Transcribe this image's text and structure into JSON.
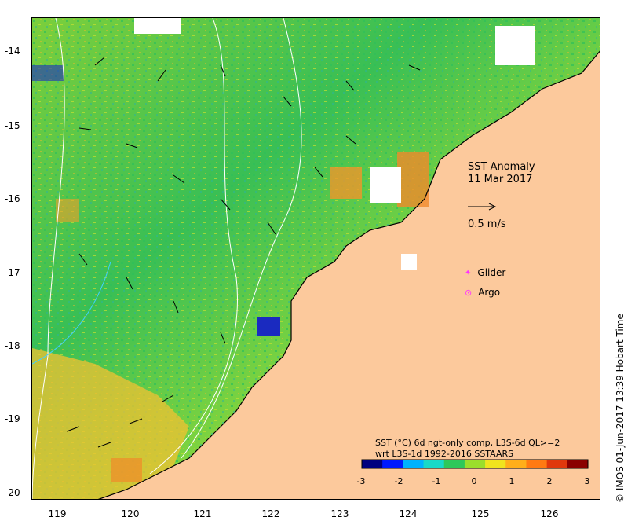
{
  "title": "SST Anomaly",
  "date": "11 Mar 2017",
  "velocity_scale_label": "0.5 m/s",
  "legend": {
    "glider": "Glider",
    "argo": "Argo",
    "glider_color": "#ff33ff",
    "argo_color": "#ff33ff"
  },
  "colorbar": {
    "line1": "SST (°C) 6d ngt-only comp, L3S-6d QL>=2",
    "line2": "wrt L3S-1d 1992-2016 SSTAARS",
    "ticks": [
      "-3",
      "-2",
      "-1",
      "0",
      "1",
      "2",
      "3"
    ],
    "colors": [
      "#00007f",
      "#0019ff",
      "#00b2ff",
      "#19d9c8",
      "#2ec85a",
      "#9bde2c",
      "#f0e41e",
      "#ffae1a",
      "#ff7a12",
      "#e0380c",
      "#8a0000"
    ]
  },
  "credit": "© IMOS 01-Jun-2017 13:39 Hobart Time",
  "axes": {
    "y_ticks": [
      "-14",
      "-15",
      "-16",
      "-17",
      "-18",
      "-19",
      "-20"
    ],
    "x_ticks": [
      "119",
      "120",
      "121",
      "122",
      "123",
      "124",
      "125",
      "126"
    ]
  },
  "colors": {
    "land": "#fcc99c",
    "ocean_mid": "#9ad83a",
    "ocean_warm": "#e8d52a",
    "ocean_cool": "#3fc46a"
  }
}
